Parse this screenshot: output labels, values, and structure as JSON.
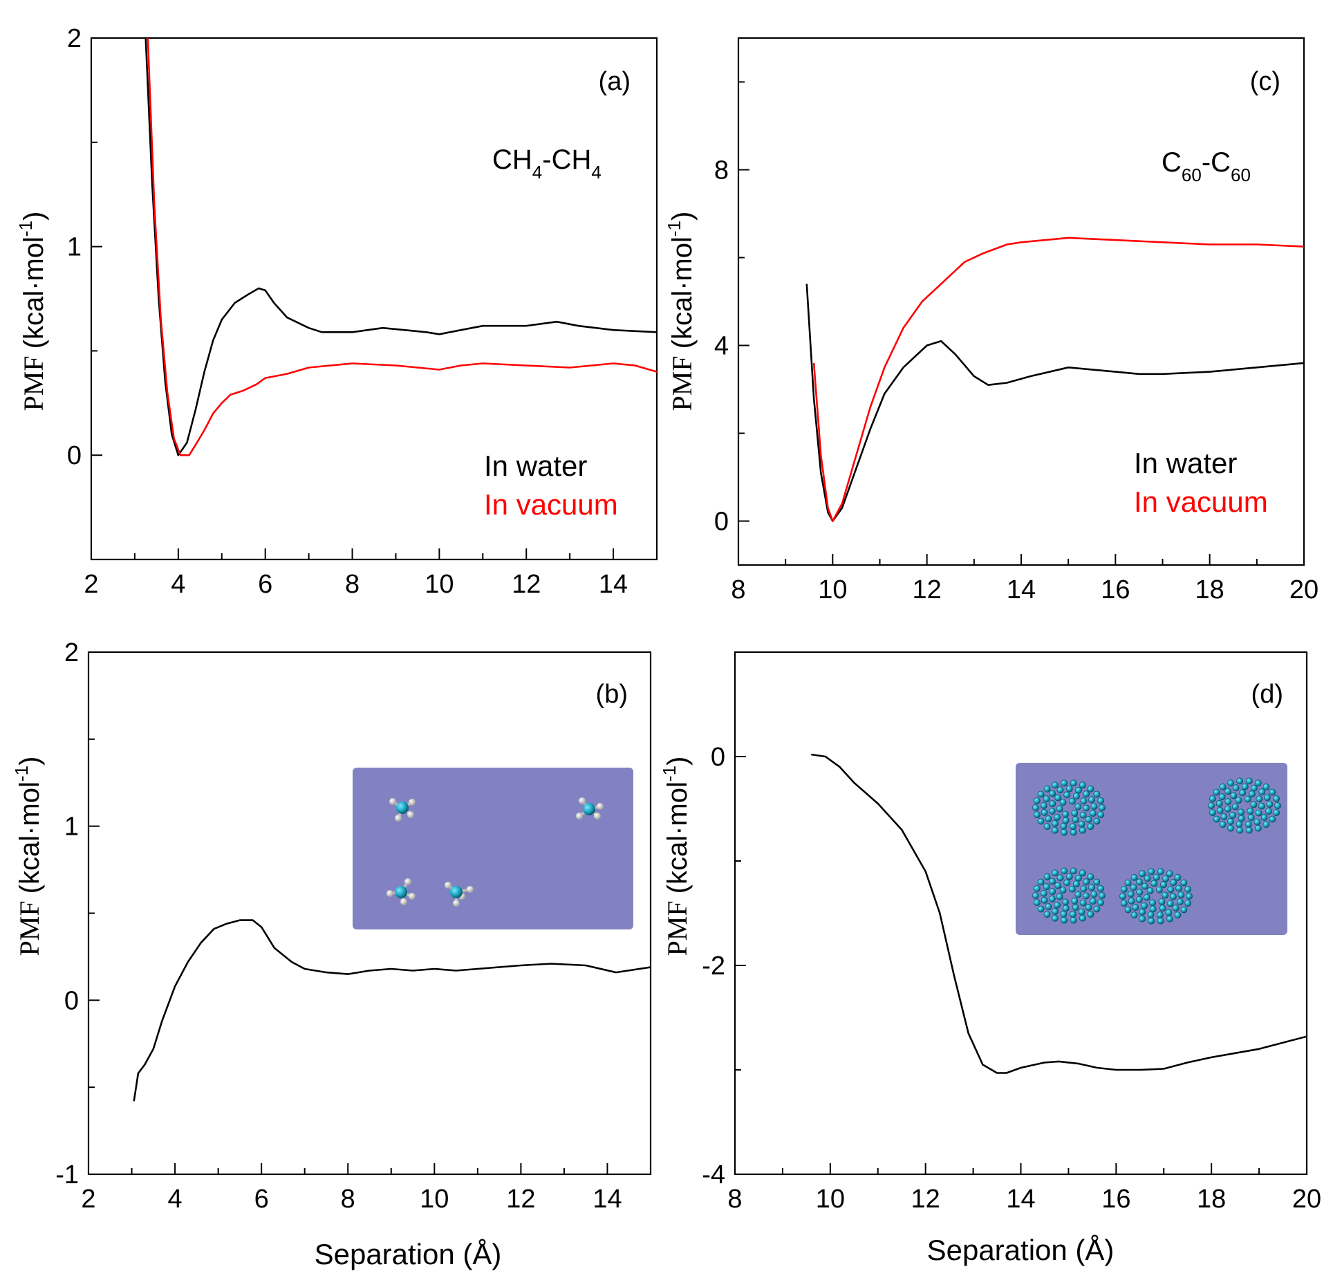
{
  "chart_data": [
    {
      "id": "a",
      "type": "line",
      "panel_label": "(a)",
      "annotation": {
        "main": "CH",
        "sub1": "4",
        "dash": "-CH",
        "sub2": "4"
      },
      "ylabel": "PMF",
      "ylabel_unit": "(kcal·mol",
      "ylabel_sup": "-1",
      "ylabel_close": ")",
      "xlabel": "",
      "xlim": [
        2,
        15
      ],
      "ylim": [
        -0.5,
        2
      ],
      "xticks": [
        2,
        4,
        6,
        8,
        10,
        12,
        14
      ],
      "xtick_labels": [
        "2",
        "4",
        "6",
        "8",
        "10",
        "12",
        "14"
      ],
      "yticks": [
        0,
        1,
        2
      ],
      "ytick_labels": [
        "0",
        "1",
        "2"
      ],
      "legend": [
        {
          "label": "In water",
          "color": "#000000"
        },
        {
          "label": "In vacuum",
          "color": "#ff0000"
        }
      ],
      "series": [
        {
          "name": "In water",
          "color": "#000000",
          "x": [
            3.25,
            3.4,
            3.55,
            3.7,
            3.85,
            4.0,
            4.2,
            4.4,
            4.6,
            4.8,
            5.0,
            5.3,
            5.6,
            5.85,
            6.0,
            6.2,
            6.5,
            7.0,
            7.3,
            8.0,
            8.7,
            9.2,
            9.7,
            10.0,
            10.5,
            11.0,
            12.0,
            12.7,
            13.2,
            14.0,
            15.0
          ],
          "y": [
            2.0,
            1.3,
            0.75,
            0.35,
            0.1,
            0.0,
            0.06,
            0.22,
            0.4,
            0.55,
            0.65,
            0.73,
            0.77,
            0.8,
            0.79,
            0.73,
            0.66,
            0.61,
            0.59,
            0.59,
            0.61,
            0.6,
            0.59,
            0.58,
            0.6,
            0.62,
            0.62,
            0.64,
            0.62,
            0.6,
            0.59
          ]
        },
        {
          "name": "In vacuum",
          "color": "#ff0000",
          "x": [
            3.3,
            3.45,
            3.6,
            3.75,
            3.9,
            4.05,
            4.25,
            4.4,
            4.6,
            4.8,
            5.0,
            5.2,
            5.5,
            5.8,
            6.0,
            6.5,
            7.0,
            7.5,
            8.0,
            9.0,
            9.5,
            10.0,
            10.5,
            11.0,
            12.0,
            13.0,
            14.0,
            14.5,
            15.0
          ],
          "y": [
            2.0,
            1.2,
            0.65,
            0.3,
            0.08,
            0.0,
            0.0,
            0.05,
            0.12,
            0.2,
            0.25,
            0.29,
            0.31,
            0.34,
            0.37,
            0.39,
            0.42,
            0.43,
            0.44,
            0.43,
            0.42,
            0.41,
            0.43,
            0.44,
            0.43,
            0.42,
            0.44,
            0.43,
            0.4
          ]
        }
      ]
    },
    {
      "id": "c",
      "type": "line",
      "panel_label": "(c)",
      "annotation": {
        "main": "C",
        "sub1": "60",
        "dash": "-C",
        "sub2": "60"
      },
      "ylabel": "PMF",
      "ylabel_unit": "(kcal·mol",
      "ylabel_sup": "-1",
      "ylabel_close": ")",
      "xlabel": "",
      "xlim": [
        8,
        20
      ],
      "ylim": [
        -1,
        11
      ],
      "xticks": [
        8,
        10,
        12,
        14,
        16,
        18,
        20
      ],
      "xtick_labels": [
        "8",
        "10",
        "12",
        "14",
        "16",
        "18",
        "20"
      ],
      "yticks": [
        0,
        4,
        8
      ],
      "ytick_labels": [
        "0",
        "4",
        "8"
      ],
      "legend": [
        {
          "label": "In water",
          "color": "#000000"
        },
        {
          "label": "In vacuum",
          "color": "#ff0000"
        }
      ],
      "series": [
        {
          "name": "In water",
          "color": "#000000",
          "x": [
            9.45,
            9.6,
            9.75,
            9.9,
            10.0,
            10.2,
            10.5,
            10.8,
            11.1,
            11.5,
            12.0,
            12.3,
            12.6,
            13.0,
            13.3,
            13.7,
            14.2,
            15.0,
            15.5,
            16.0,
            16.5,
            17.0,
            18.0,
            19.0,
            20.0
          ],
          "y": [
            5.4,
            2.8,
            1.1,
            0.2,
            0.0,
            0.3,
            1.2,
            2.1,
            2.9,
            3.5,
            4.0,
            4.1,
            3.8,
            3.3,
            3.1,
            3.15,
            3.3,
            3.5,
            3.45,
            3.4,
            3.35,
            3.35,
            3.4,
            3.5,
            3.6
          ]
        },
        {
          "name": "In vacuum",
          "color": "#ff0000",
          "x": [
            9.6,
            9.75,
            9.9,
            10.0,
            10.2,
            10.5,
            10.8,
            11.1,
            11.5,
            11.9,
            12.3,
            12.8,
            13.2,
            13.7,
            14.0,
            15.0,
            16.0,
            17.0,
            18.0,
            19.0,
            20.0
          ],
          "y": [
            3.6,
            1.5,
            0.3,
            0.0,
            0.4,
            1.5,
            2.6,
            3.5,
            4.4,
            5.0,
            5.4,
            5.9,
            6.1,
            6.3,
            6.35,
            6.45,
            6.4,
            6.35,
            6.3,
            6.3,
            6.25
          ]
        }
      ]
    },
    {
      "id": "b",
      "type": "line",
      "panel_label": "(b)",
      "ylabel": "PMF",
      "ylabel_unit": "(kcal·mol",
      "ylabel_sup": "-1",
      "ylabel_close": ")",
      "xlabel": "Separation (Å)",
      "xlim": [
        2,
        15
      ],
      "ylim": [
        -1,
        2
      ],
      "xticks": [
        2,
        4,
        6,
        8,
        10,
        12,
        14
      ],
      "xtick_labels": [
        "2",
        "4",
        "6",
        "8",
        "10",
        "12",
        "14"
      ],
      "yticks": [
        -1,
        0,
        1,
        2
      ],
      "ytick_labels": [
        "-1",
        "0",
        "1",
        "2"
      ],
      "series": [
        {
          "name": "PMF",
          "color": "#000000",
          "x": [
            3.05,
            3.15,
            3.3,
            3.5,
            3.7,
            4.0,
            4.3,
            4.6,
            4.9,
            5.2,
            5.5,
            5.8,
            6.0,
            6.3,
            6.7,
            7.0,
            7.5,
            8.0,
            8.5,
            9.0,
            9.5,
            10.0,
            10.5,
            11.0,
            12.0,
            12.7,
            13.5,
            14.2,
            15.0
          ],
          "y": [
            -0.58,
            -0.42,
            -0.37,
            -0.28,
            -0.12,
            0.08,
            0.22,
            0.33,
            0.41,
            0.44,
            0.46,
            0.46,
            0.42,
            0.3,
            0.22,
            0.18,
            0.16,
            0.15,
            0.17,
            0.18,
            0.17,
            0.18,
            0.17,
            0.18,
            0.2,
            0.21,
            0.2,
            0.16,
            0.19
          ]
        }
      ],
      "inset": {
        "description": "methane molecules"
      }
    },
    {
      "id": "d",
      "type": "line",
      "panel_label": "(d)",
      "ylabel": "PMF",
      "ylabel_unit": "(kcal·mol",
      "ylabel_sup": "-1",
      "ylabel_close": ")",
      "xlabel": "Separation (Å)",
      "xlim": [
        8,
        20
      ],
      "ylim": [
        -4,
        1
      ],
      "xticks": [
        8,
        10,
        12,
        14,
        16,
        18,
        20
      ],
      "xtick_labels": [
        "8",
        "10",
        "12",
        "14",
        "16",
        "18",
        "20"
      ],
      "yticks": [
        -4,
        -2,
        0
      ],
      "ytick_labels": [
        "-4",
        "-2",
        "0"
      ],
      "series": [
        {
          "name": "PMF",
          "color": "#000000",
          "x": [
            9.6,
            9.9,
            10.2,
            10.5,
            11.0,
            11.5,
            12.0,
            12.3,
            12.6,
            12.9,
            13.2,
            13.5,
            13.7,
            14.0,
            14.5,
            14.8,
            15.2,
            15.6,
            16.0,
            16.5,
            17.0,
            17.5,
            18.0,
            19.0,
            20.0
          ],
          "y": [
            0.02,
            0.0,
            -0.1,
            -0.25,
            -0.45,
            -0.7,
            -1.1,
            -1.5,
            -2.1,
            -2.65,
            -2.95,
            -3.03,
            -3.03,
            -2.98,
            -2.93,
            -2.92,
            -2.94,
            -2.98,
            -3.0,
            -3.0,
            -2.99,
            -2.93,
            -2.88,
            -2.8,
            -2.68
          ]
        }
      ],
      "inset": {
        "description": "C60 fullerene molecules"
      }
    }
  ]
}
